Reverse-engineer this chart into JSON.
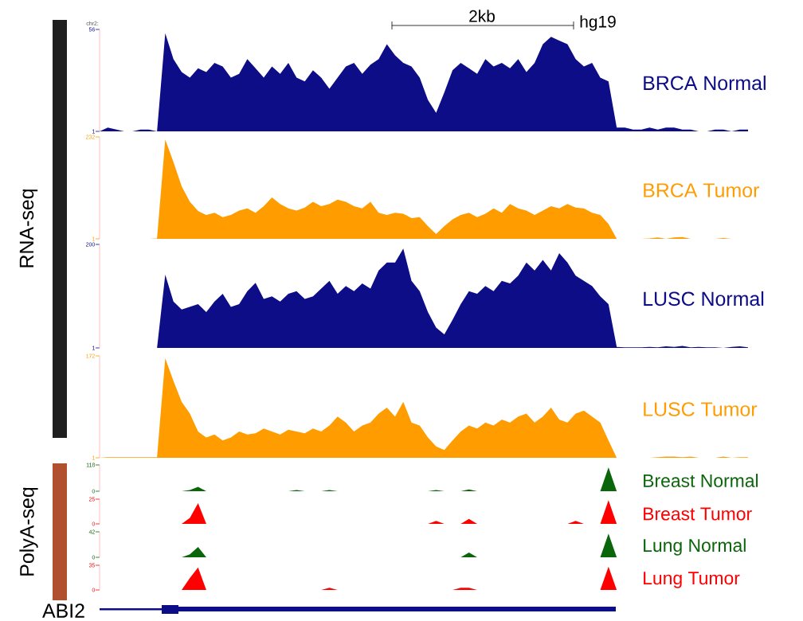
{
  "chart_data": [
    {
      "type": "area",
      "categories": [
        null,
        null,
        null,
        null,
        null,
        null,
        null,
        null,
        null,
        null,
        null,
        null,
        null,
        null,
        null,
        null,
        null,
        null,
        null,
        null,
        null,
        null,
        null,
        null,
        null,
        null,
        null,
        null,
        null,
        null,
        null,
        null,
        null,
        null,
        null,
        null,
        null,
        null,
        null,
        null,
        null,
        null,
        null,
        null,
        null,
        null,
        null,
        null,
        null,
        null,
        null,
        null,
        null,
        null,
        null,
        null,
        null,
        null,
        null,
        null,
        null,
        null,
        null,
        null,
        null,
        null,
        null,
        null,
        null,
        null,
        null,
        null,
        null,
        null,
        null,
        null,
        null,
        null,
        null,
        null
      ],
      "ylim": [
        1,
        56
      ],
      "yticks": [
        1,
        56
      ],
      "tick_labels": "y",
      "annotations": [
        "chr2:"
      ],
      "series": [
        {
          "name": "BRCA Normal",
          "color": "#0d0d87",
          "values": [
            1,
            3,
            2,
            1,
            1,
            2,
            2,
            1,
            54,
            40,
            33,
            30,
            35,
            33,
            38,
            36,
            30,
            32,
            40,
            35,
            30,
            36,
            32,
            38,
            30,
            28,
            34,
            30,
            24,
            30,
            36,
            38,
            32,
            37,
            40,
            48,
            42,
            38,
            36,
            30,
            18,
            11,
            22,
            34,
            38,
            35,
            32,
            40,
            36,
            38,
            35,
            40,
            33,
            38,
            48,
            52,
            50,
            48,
            40,
            36,
            38,
            30,
            28,
            3,
            3,
            2,
            2,
            3,
            2,
            3,
            3,
            2,
            2,
            1,
            1,
            2,
            2,
            1,
            2,
            2
          ]
        }
      ]
    },
    {
      "type": "area",
      "categories": [
        null,
        null,
        null,
        null,
        null,
        null,
        null,
        null,
        null,
        null,
        null,
        null,
        null,
        null,
        null,
        null,
        null,
        null,
        null,
        null,
        null,
        null,
        null,
        null,
        null,
        null,
        null,
        null,
        null,
        null,
        null,
        null,
        null,
        null,
        null,
        null,
        null,
        null,
        null,
        null,
        null,
        null,
        null,
        null,
        null,
        null,
        null,
        null,
        null,
        null,
        null,
        null,
        null,
        null,
        null,
        null,
        null,
        null,
        null,
        null,
        null,
        null,
        null,
        null,
        null,
        null,
        null,
        null,
        null,
        null,
        null,
        null,
        null,
        null,
        null,
        null,
        null,
        null,
        null,
        null
      ],
      "ylim": [
        1,
        232
      ],
      "yticks": [
        1,
        232
      ],
      "tick_labels": "y",
      "series": [
        {
          "name": "BRCA Tumor",
          "color": "#ff9c00",
          "values": [
            1,
            1,
            1,
            1,
            1,
            1,
            1,
            2,
            226,
            175,
            120,
            85,
            64,
            55,
            60,
            50,
            55,
            65,
            70,
            60,
            75,
            95,
            80,
            70,
            65,
            72,
            85,
            75,
            80,
            90,
            85,
            75,
            70,
            85,
            60,
            55,
            60,
            58,
            48,
            50,
            30,
            12,
            30,
            45,
            55,
            60,
            50,
            58,
            70,
            60,
            80,
            70,
            65,
            55,
            65,
            75,
            70,
            80,
            72,
            70,
            60,
            55,
            35,
            1,
            1,
            1,
            1,
            2,
            4,
            1,
            4,
            5,
            1,
            1,
            1,
            1,
            3,
            1,
            1,
            1
          ]
        }
      ]
    },
    {
      "type": "area",
      "categories": [
        null,
        null,
        null,
        null,
        null,
        null,
        null,
        null,
        null,
        null,
        null,
        null,
        null,
        null,
        null,
        null,
        null,
        null,
        null,
        null,
        null,
        null,
        null,
        null,
        null,
        null,
        null,
        null,
        null,
        null,
        null,
        null,
        null,
        null,
        null,
        null,
        null,
        null,
        null,
        null,
        null,
        null,
        null,
        null,
        null,
        null,
        null,
        null,
        null,
        null,
        null,
        null,
        null,
        null,
        null,
        null,
        null,
        null,
        null,
        null,
        null,
        null,
        null,
        null,
        null,
        null,
        null,
        null,
        null,
        null,
        null,
        null,
        null,
        null,
        null,
        null,
        null,
        null,
        null,
        null
      ],
      "ylim": [
        1,
        200
      ],
      "yticks": [
        1,
        200
      ],
      "tick_labels": "y",
      "series": [
        {
          "name": "LUSC Normal",
          "color": "#0d0d87",
          "values": [
            1,
            1,
            1,
            1,
            1,
            1,
            1,
            1,
            142,
            90,
            75,
            80,
            85,
            70,
            90,
            105,
            80,
            85,
            110,
            126,
            95,
            100,
            90,
            105,
            110,
            95,
            100,
            115,
            130,
            105,
            120,
            110,
            125,
            115,
            150,
            165,
            165,
            192,
            130,
            110,
            70,
            40,
            27,
            55,
            85,
            110,
            105,
            120,
            110,
            130,
            125,
            140,
            165,
            150,
            170,
            150,
            183,
            165,
            140,
            130,
            120,
            100,
            85,
            3,
            2,
            2,
            2,
            3,
            2,
            4,
            3,
            5,
            2,
            3,
            2,
            2,
            1,
            3,
            4,
            2
          ]
        }
      ]
    },
    {
      "type": "area",
      "categories": [
        null,
        null,
        null,
        null,
        null,
        null,
        null,
        null,
        null,
        null,
        null,
        null,
        null,
        null,
        null,
        null,
        null,
        null,
        null,
        null,
        null,
        null,
        null,
        null,
        null,
        null,
        null,
        null,
        null,
        null,
        null,
        null,
        null,
        null,
        null,
        null,
        null,
        null,
        null,
        null,
        null,
        null,
        null,
        null,
        null,
        null,
        null,
        null,
        null,
        null,
        null,
        null,
        null,
        null,
        null,
        null,
        null,
        null,
        null,
        null,
        null,
        null,
        null,
        null,
        null,
        null,
        null,
        null,
        null,
        null,
        null,
        null,
        null,
        null,
        null,
        null,
        null,
        null,
        null,
        null
      ],
      "ylim": [
        1,
        172
      ],
      "yticks": [
        1,
        172
      ],
      "tick_labels": "y",
      "series": [
        {
          "name": "LUSC Tumor",
          "color": "#ff9c00",
          "values": [
            1,
            2,
            2,
            2,
            2,
            2,
            2,
            2,
            168,
            130,
            95,
            75,
            45,
            35,
            40,
            30,
            35,
            45,
            40,
            42,
            50,
            45,
            40,
            48,
            45,
            42,
            50,
            45,
            55,
            70,
            60,
            45,
            55,
            60,
            75,
            85,
            70,
            95,
            60,
            55,
            35,
            20,
            14,
            30,
            45,
            55,
            50,
            60,
            55,
            65,
            60,
            70,
            75,
            60,
            70,
            85,
            65,
            60,
            75,
            80,
            70,
            60,
            30,
            1,
            1,
            1,
            1,
            1,
            2,
            3,
            3,
            2,
            3,
            1,
            1,
            1,
            3,
            1,
            2,
            2
          ]
        }
      ]
    },
    {
      "type": "area",
      "categories": [
        null,
        null,
        null,
        null,
        null,
        null,
        null,
        null,
        null,
        null,
        null,
        null,
        null,
        null,
        null,
        null,
        null,
        null,
        null,
        null,
        null,
        null,
        null,
        null,
        null,
        null,
        null,
        null,
        null,
        null,
        null,
        null,
        null,
        null,
        null,
        null,
        null,
        null,
        null,
        null,
        null,
        null,
        null,
        null,
        null,
        null,
        null,
        null,
        null,
        null,
        null,
        null,
        null,
        null,
        null,
        null,
        null,
        null,
        null,
        null,
        null,
        null,
        null,
        null,
        null,
        null,
        null,
        null,
        null,
        null,
        null,
        null,
        null,
        null,
        null,
        null,
        null,
        null,
        null,
        null
      ],
      "ylim": [
        0,
        118
      ],
      "yticks": [
        0,
        118
      ],
      "tick_labels": "y",
      "series": [
        {
          "name": "Breast Normal",
          "color": "#0b650b",
          "values": [
            0,
            0,
            0,
            0,
            0,
            0,
            0,
            0,
            0,
            0,
            0,
            5,
            20,
            0,
            0,
            0,
            0,
            0,
            0,
            0,
            0,
            0,
            0,
            0,
            5,
            0,
            0,
            0,
            5,
            0,
            0,
            0,
            0,
            0,
            0,
            0,
            0,
            0,
            0,
            0,
            0,
            5,
            0,
            0,
            0,
            8,
            0,
            0,
            0,
            0,
            0,
            0,
            0,
            0,
            0,
            0,
            0,
            0,
            0,
            0,
            0,
            0,
            107,
            0,
            0,
            0,
            0,
            0,
            0,
            0,
            0,
            0,
            0,
            0,
            0,
            0,
            0,
            0,
            0,
            0
          ]
        }
      ]
    },
    {
      "type": "area",
      "categories": [
        null,
        null,
        null,
        null,
        null,
        null,
        null,
        null,
        null,
        null,
        null,
        null,
        null,
        null,
        null,
        null,
        null,
        null,
        null,
        null,
        null,
        null,
        null,
        null,
        null,
        null,
        null,
        null,
        null,
        null,
        null,
        null,
        null,
        null,
        null,
        null,
        null,
        null,
        null,
        null,
        null,
        null,
        null,
        null,
        null,
        null,
        null,
        null,
        null,
        null,
        null,
        null,
        null,
        null,
        null,
        null,
        null,
        null,
        null,
        null,
        null,
        null,
        null,
        null,
        null,
        null,
        null,
        null,
        null,
        null,
        null,
        null,
        null,
        null,
        null,
        null,
        null,
        null,
        null,
        null
      ],
      "ylim": [
        0,
        25
      ],
      "yticks": [
        0,
        25
      ],
      "tick_labels": "y",
      "series": [
        {
          "name": "Breast Tumor",
          "color": "#ff0000",
          "values": [
            0,
            0,
            0,
            0,
            0,
            0,
            0,
            0,
            0,
            0,
            0,
            6,
            21,
            0,
            0,
            0,
            0,
            0,
            0,
            0,
            0,
            0,
            0,
            0,
            0,
            0,
            0,
            0,
            0,
            0,
            0,
            0,
            0,
            0,
            0,
            0,
            0,
            0,
            0,
            0,
            0,
            3,
            0,
            0,
            0,
            5,
            0,
            0,
            0,
            0,
            0,
            0,
            0,
            0,
            0,
            0,
            0,
            0,
            3,
            0,
            0,
            0,
            24,
            0,
            0,
            0,
            0,
            0,
            0,
            0,
            0,
            0,
            0,
            0,
            0,
            0,
            0,
            0,
            0,
            0
          ]
        }
      ]
    },
    {
      "type": "area",
      "categories": [
        null,
        null,
        null,
        null,
        null,
        null,
        null,
        null,
        null,
        null,
        null,
        null,
        null,
        null,
        null,
        null,
        null,
        null,
        null,
        null,
        null,
        null,
        null,
        null,
        null,
        null,
        null,
        null,
        null,
        null,
        null,
        null,
        null,
        null,
        null,
        null,
        null,
        null,
        null,
        null,
        null,
        null,
        null,
        null,
        null,
        null,
        null,
        null,
        null,
        null,
        null,
        null,
        null,
        null,
        null,
        null,
        null,
        null,
        null,
        null,
        null,
        null,
        null,
        null,
        null,
        null,
        null,
        null,
        null,
        null,
        null,
        null,
        null,
        null,
        null,
        null,
        null,
        null,
        null,
        null
      ],
      "ylim": [
        0,
        42
      ],
      "yticks": [
        0,
        42
      ],
      "tick_labels": "y",
      "series": [
        {
          "name": "Lung Normal",
          "color": "#0b650b",
          "values": [
            0,
            0,
            0,
            0,
            0,
            0,
            0,
            0,
            0,
            0,
            0,
            5,
            17,
            0,
            0,
            0,
            0,
            0,
            0,
            0,
            0,
            0,
            0,
            0,
            0,
            0,
            0,
            0,
            0,
            0,
            0,
            0,
            0,
            0,
            0,
            0,
            0,
            0,
            0,
            0,
            0,
            0,
            0,
            0,
            0,
            8,
            0,
            0,
            0,
            0,
            0,
            0,
            0,
            0,
            0,
            0,
            0,
            0,
            0,
            0,
            0,
            0,
            39,
            0,
            0,
            0,
            0,
            0,
            0,
            0,
            0,
            0,
            0,
            0,
            0,
            0,
            0,
            0,
            0,
            0
          ]
        }
      ]
    },
    {
      "type": "area",
      "categories": [
        null,
        null,
        null,
        null,
        null,
        null,
        null,
        null,
        null,
        null,
        null,
        null,
        null,
        null,
        null,
        null,
        null,
        null,
        null,
        null,
        null,
        null,
        null,
        null,
        null,
        null,
        null,
        null,
        null,
        null,
        null,
        null,
        null,
        null,
        null,
        null,
        null,
        null,
        null,
        null,
        null,
        null,
        null,
        null,
        null,
        null,
        null,
        null,
        null,
        null,
        null,
        null,
        null,
        null,
        null,
        null,
        null,
        null,
        null,
        null,
        null,
        null,
        null,
        null,
        null,
        null,
        null,
        null,
        null,
        null,
        null,
        null,
        null,
        null,
        null,
        null,
        null,
        null,
        null,
        null
      ],
      "ylim": [
        0,
        35
      ],
      "yticks": [
        0,
        35
      ],
      "tick_labels": "y",
      "series": [
        {
          "name": "Lung Tumor",
          "color": "#ff0000",
          "values": [
            0,
            0,
            0,
            0,
            0,
            0,
            0,
            0,
            0,
            0,
            0,
            17,
            32,
            0,
            0,
            0,
            0,
            0,
            0,
            0,
            0,
            0,
            0,
            0,
            0,
            0,
            0,
            0,
            3,
            0,
            0,
            0,
            0,
            0,
            0,
            0,
            0,
            0,
            0,
            0,
            0,
            0,
            0,
            0,
            3,
            3,
            0,
            0,
            0,
            0,
            0,
            0,
            0,
            0,
            0,
            0,
            0,
            0,
            0,
            0,
            0,
            0,
            33,
            0,
            0,
            0,
            0,
            0,
            0,
            0,
            0,
            0,
            0,
            0,
            0,
            0,
            0,
            0,
            0,
            0
          ]
        }
      ]
    },
    {
      "type": "other",
      "annotations": [
        "RNA-seq",
        "PolyA-seq",
        "ABI2",
        "2kb",
        "hg19"
      ]
    }
  ]
}
